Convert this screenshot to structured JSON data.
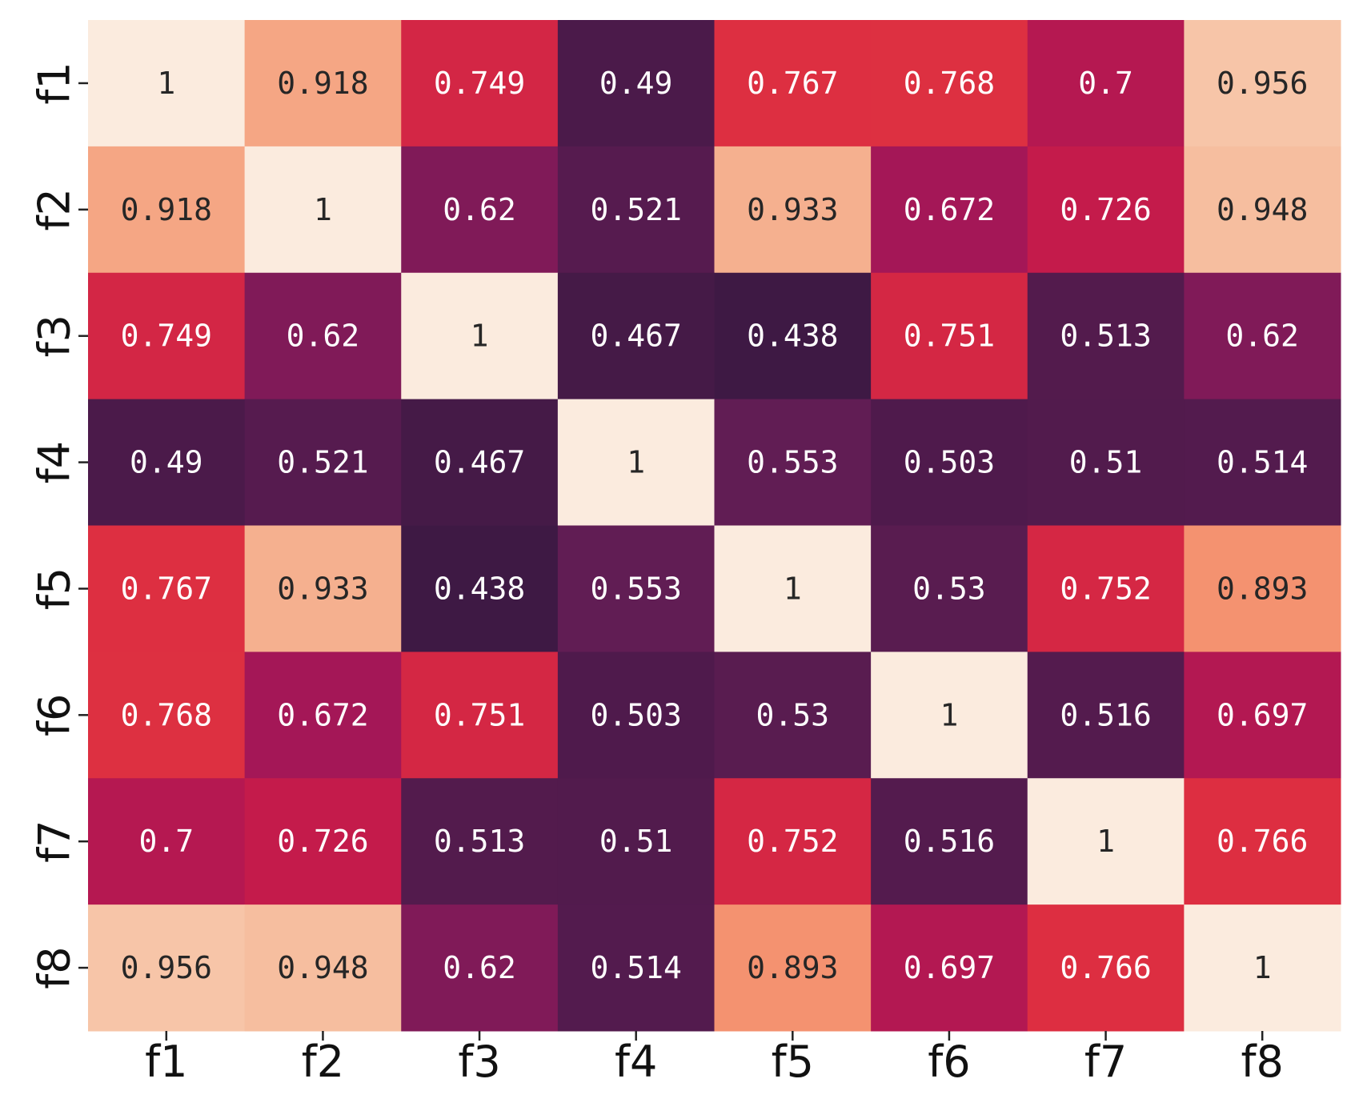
{
  "chart_data": {
    "type": "heatmap",
    "title": "",
    "xlabel": "",
    "ylabel": "",
    "x_categories": [
      "f1",
      "f2",
      "f3",
      "f4",
      "f5",
      "f6",
      "f7",
      "f8"
    ],
    "y_categories": [
      "f1",
      "f2",
      "f3",
      "f4",
      "f5",
      "f6",
      "f7",
      "f8"
    ],
    "values": [
      [
        1,
        0.918,
        0.749,
        0.49,
        0.767,
        0.768,
        0.7,
        0.956
      ],
      [
        0.918,
        1,
        0.62,
        0.521,
        0.933,
        0.672,
        0.726,
        0.948
      ],
      [
        0.749,
        0.62,
        1,
        0.467,
        0.438,
        0.751,
        0.513,
        0.62
      ],
      [
        0.49,
        0.521,
        0.467,
        1,
        0.553,
        0.503,
        0.51,
        0.514
      ],
      [
        0.767,
        0.933,
        0.438,
        0.553,
        1,
        0.53,
        0.752,
        0.893
      ],
      [
        0.768,
        0.672,
        0.751,
        0.503,
        0.53,
        1,
        0.516,
        0.697
      ],
      [
        0.7,
        0.726,
        0.513,
        0.51,
        0.752,
        0.516,
        1,
        0.766
      ],
      [
        0.956,
        0.948,
        0.62,
        0.514,
        0.893,
        0.697,
        0.766,
        1
      ]
    ],
    "annotations": [
      [
        "1",
        "0.918",
        "0.749",
        "0.49",
        "0.767",
        "0.768",
        "0.7",
        "0.956"
      ],
      [
        "0.918",
        "1",
        "0.62",
        "0.521",
        "0.933",
        "0.672",
        "0.726",
        "0.948"
      ],
      [
        "0.749",
        "0.62",
        "1",
        "0.467",
        "0.438",
        "0.751",
        "0.513",
        "0.62"
      ],
      [
        "0.49",
        "0.521",
        "0.467",
        "1",
        "0.553",
        "0.503",
        "0.51",
        "0.514"
      ],
      [
        "0.767",
        "0.933",
        "0.438",
        "0.553",
        "1",
        "0.53",
        "0.752",
        "0.893"
      ],
      [
        "0.768",
        "0.672",
        "0.751",
        "0.503",
        "0.53",
        "1",
        "0.516",
        "0.697"
      ],
      [
        "0.7",
        "0.726",
        "0.513",
        "0.51",
        "0.752",
        "0.516",
        "1",
        "0.766"
      ],
      [
        "0.956",
        "0.948",
        "0.62",
        "0.514",
        "0.893",
        "0.697",
        "0.766",
        "1"
      ]
    ],
    "colormap": "rocket",
    "color_range": [
      0.438,
      1
    ],
    "colorbar": false,
    "grid": false
  }
}
